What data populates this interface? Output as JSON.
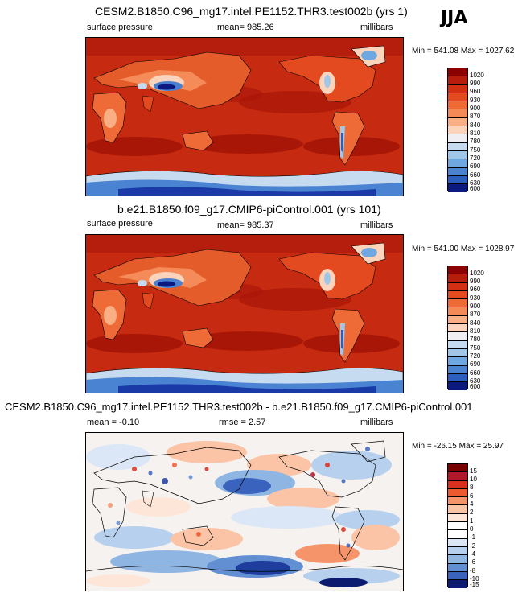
{
  "season": "JJA",
  "panels": [
    {
      "title": "CESM2.B1850.C96_mg17.intel.PE1152.THR3.test002b (yrs 1)",
      "left_label": "surface pressure",
      "center_label": "mean= 985.26",
      "right_label": "millibars",
      "range_label": "Min = 541.08 Max = 1027.62",
      "colorbar_levels": [
        "1020",
        "990",
        "960",
        "930",
        "900",
        "870",
        "840",
        "810",
        "780",
        "750",
        "720",
        "690",
        "660",
        "630",
        "600"
      ]
    },
    {
      "title": "b.e21.B1850.f09_g17.CMIP6-piControl.001 (yrs 101)",
      "left_label": "surface pressure",
      "center_label": "mean= 985.37",
      "right_label": "millibars",
      "range_label": "Min = 541.00 Max = 1028.97",
      "colorbar_levels": [
        "1020",
        "990",
        "960",
        "930",
        "900",
        "870",
        "840",
        "810",
        "780",
        "750",
        "720",
        "690",
        "660",
        "630",
        "600"
      ]
    },
    {
      "title": "CESM2.B1850.C96_mg17.intel.PE1152.THR3.test002b - b.e21.B1850.f09_g17.CMIP6-piControl.001",
      "left_label": "mean =  -0.10",
      "center_label": "rmse =   2.57",
      "right_label": "millibars",
      "range_label": "Min = -26.15 Max = 25.97",
      "colorbar_levels": [
        "15",
        "10",
        "8",
        "6",
        "4",
        "2",
        "1",
        "0",
        "-1",
        "-2",
        "-4",
        "-6",
        "-8",
        "-10",
        "-15"
      ]
    }
  ],
  "colors": {
    "abs_scale": [
      "#8b0000",
      "#b81c0c",
      "#d32f12",
      "#e34a1f",
      "#ee6a36",
      "#f48a55",
      "#f9ae83",
      "#fcd3bb",
      "#f1eef3",
      "#c6dbef",
      "#9ec7ea",
      "#6fa8e0",
      "#4a83d2",
      "#2a5ec0",
      "#1a3aa8",
      "#0a1a80"
    ],
    "diff_scale": [
      "#7a0000",
      "#b2182b",
      "#d6301f",
      "#ee5a30",
      "#f5946a",
      "#fbc4a6",
      "#fde6d8",
      "#ffffff",
      "#dbe7f6",
      "#b6d0ee",
      "#8fb5e3",
      "#628fd2",
      "#3a63bd",
      "#1f3d9c",
      "#0c1a70"
    ]
  }
}
